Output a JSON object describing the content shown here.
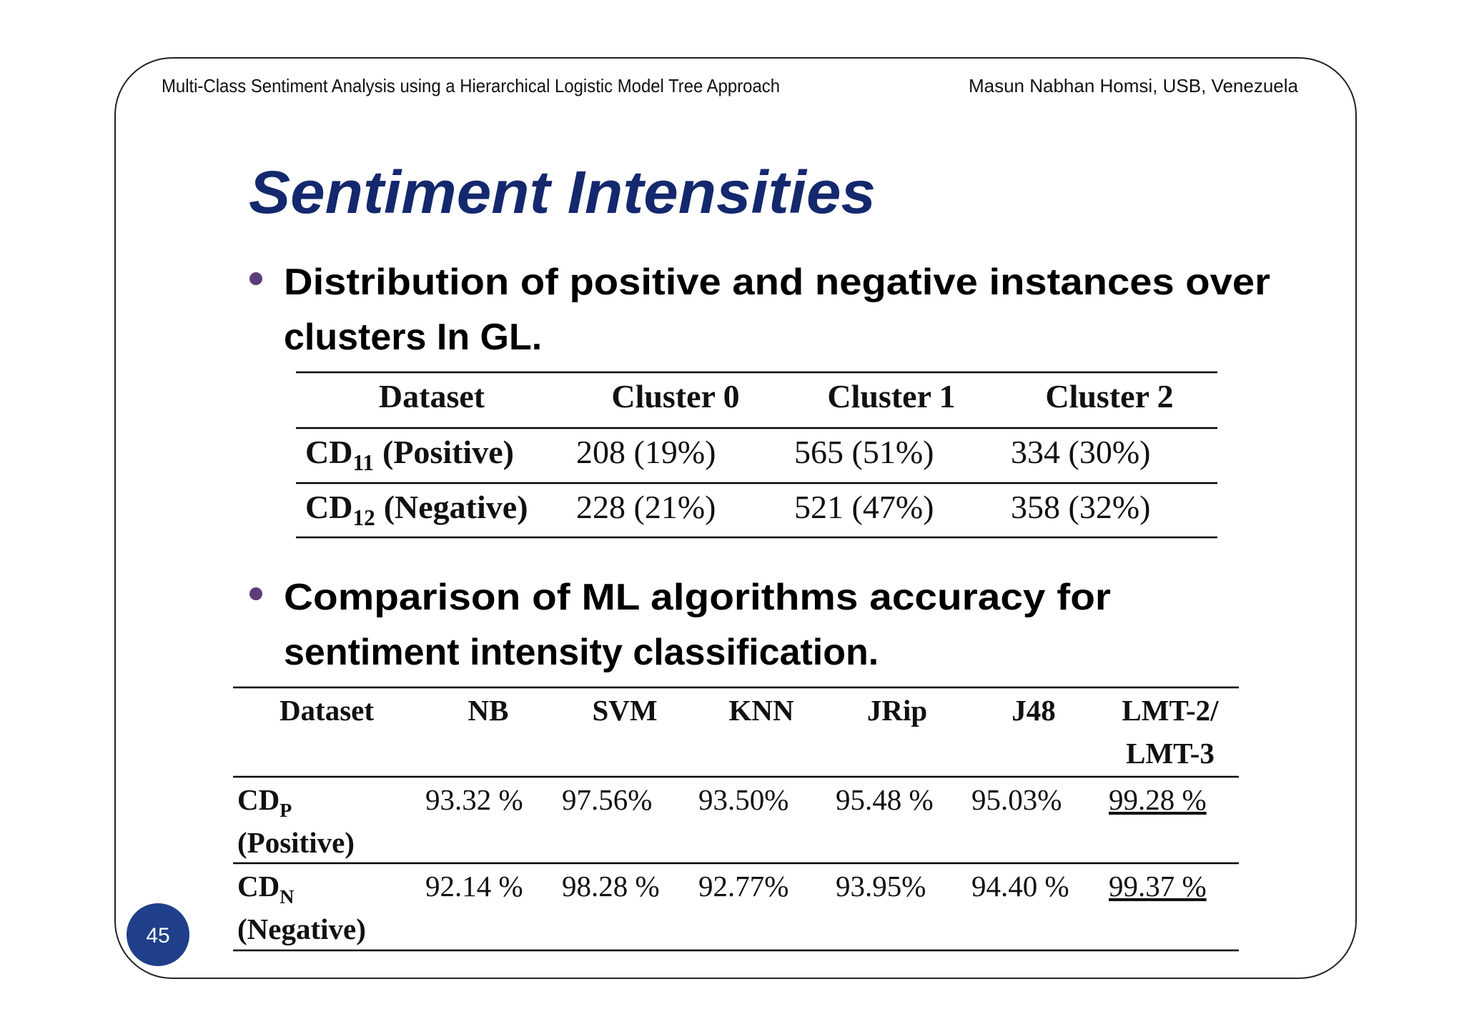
{
  "header": {
    "left": "Multi-Class Sentiment Analysis using a Hierarchical Logistic Model Tree Approach",
    "right": "Masun Nabhan Homsi, USB, Venezuela"
  },
  "title": "Sentiment Intensities",
  "bullets": [
    {
      "lines": [
        "Distribution of positive and negative instances over",
        "clusters In GL."
      ]
    },
    {
      "lines": [
        "Comparison of ML algorithms accuracy for",
        "sentiment intensity classification."
      ]
    }
  ],
  "cluster_table": {
    "header": [
      "Dataset",
      "Cluster 0",
      "Cluster 1",
      "Cluster 2"
    ],
    "rows": [
      {
        "label": {
          "main": "CD",
          "sub": "11",
          "rest": "(Positive)"
        },
        "values": [
          "208 (19%)",
          "565 (51%)",
          "334 (30%)"
        ]
      },
      {
        "label": {
          "main": "CD",
          "sub": "12",
          "rest": "(Negative)"
        },
        "values": [
          "228 (21%)",
          "521 (47%)",
          "358 (32%)"
        ]
      }
    ]
  },
  "ml_table": {
    "header": [
      [
        "Dataset"
      ],
      [
        "NB"
      ],
      [
        "SVM"
      ],
      [
        "KNN"
      ],
      [
        "JRip"
      ],
      [
        "J48"
      ],
      [
        "LMT-2/",
        "LMT-3"
      ]
    ],
    "rows": [
      {
        "label": {
          "main": "CD",
          "sub": "P",
          "rest": "(Positive)"
        },
        "values": [
          "93.32 %",
          "97.56%",
          "93.50%",
          "95.48 %",
          "95.03%",
          "99.28 %"
        ]
      },
      {
        "label": {
          "main": "CD",
          "sub": "N",
          "rest": "(Negative)"
        },
        "values": [
          "92.14 %",
          "98.28 %",
          "92.77%",
          "93.95%",
          "94.40 %",
          "99.37 %"
        ]
      }
    ]
  },
  "page_number": "45"
}
